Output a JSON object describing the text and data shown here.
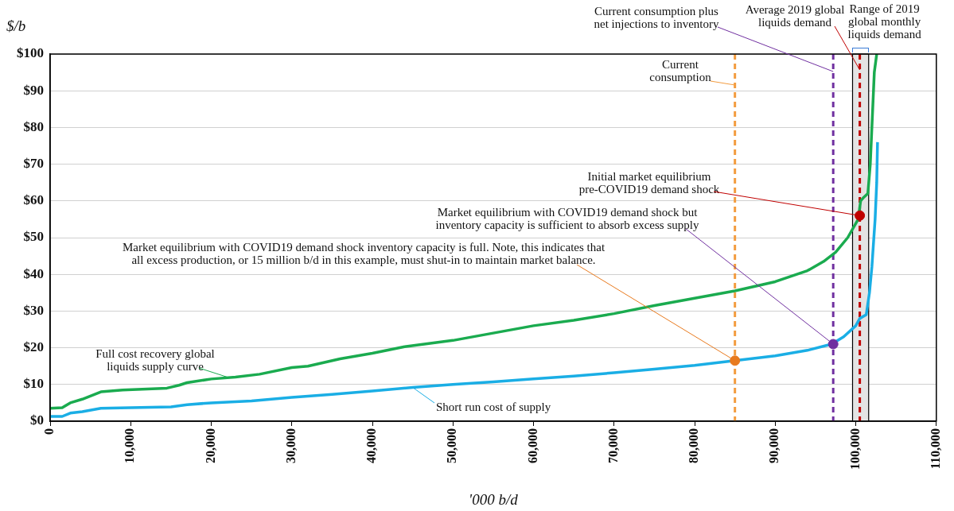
{
  "chart_data": {
    "type": "line",
    "xlabel": "'000 b/d",
    "ylabel": "$/b",
    "xlim": [
      0,
      110000
    ],
    "ylim": [
      0,
      100
    ],
    "xticks": [
      0,
      {
        "value": 10000,
        "label": "10,000"
      },
      {
        "value": 20000,
        "label": "20,000"
      },
      {
        "value": 30000,
        "label": "30,000"
      },
      {
        "value": 40000,
        "label": "40,000"
      },
      {
        "value": 50000,
        "label": "50,000"
      },
      {
        "value": 60000,
        "label": "60,000"
      },
      {
        "value": 70000,
        "label": "70,000"
      },
      {
        "value": 80000,
        "label": "80,000"
      },
      {
        "value": 90000,
        "label": "90,000"
      },
      {
        "value": 100000,
        "label": "100,000"
      },
      {
        "value": 110000,
        "label": "110,000"
      }
    ],
    "yticks": [
      {
        "value": 0,
        "label": "$0"
      },
      {
        "value": 10,
        "label": "$10"
      },
      {
        "value": 20,
        "label": "$20"
      },
      {
        "value": 30,
        "label": "$30"
      },
      {
        "value": 40,
        "label": "$40"
      },
      {
        "value": 50,
        "label": "$50"
      },
      {
        "value": 60,
        "label": "$60"
      },
      {
        "value": 70,
        "label": "$70"
      },
      {
        "value": 80,
        "label": "$80"
      },
      {
        "value": 90,
        "label": "$90"
      },
      {
        "value": 100,
        "label": "$100"
      }
    ],
    "grid": "y",
    "legend": false,
    "marker": "none",
    "line_style": "solid",
    "series": [
      {
        "name": "Full cost recovery global\nliquids supply curve",
        "color": "#1aab4f",
        "x": [
          0,
          1500,
          2500,
          4000,
          6300,
          9000,
          14500,
          16000,
          17000,
          20000,
          23000,
          26000,
          30000,
          32000,
          36000,
          40000,
          44000,
          50000,
          55000,
          60000,
          65000,
          70000,
          75000,
          80000,
          85000,
          90000,
          94000,
          96000,
          97500,
          99000,
          100300,
          100600,
          101000,
          101500,
          101800,
          102000,
          102300,
          102600
        ],
        "values": [
          3.5,
          3.7,
          5,
          6,
          8,
          8.5,
          9,
          9.8,
          10.5,
          11.5,
          12,
          12.8,
          14.6,
          15,
          17,
          18.5,
          20.3,
          22,
          24,
          26,
          27.5,
          29.3,
          31.5,
          33.5,
          35.5,
          38,
          41,
          43.5,
          46,
          50,
          55,
          60,
          61,
          62,
          70,
          80,
          95,
          100
        ]
      },
      {
        "name": "Short run cost of supply",
        "color": "#1aaee5",
        "x": [
          0,
          1500,
          2500,
          4000,
          6300,
          10000,
          15000,
          17000,
          20000,
          25000,
          30000,
          35000,
          40000,
          45000,
          50000,
          55000,
          60000,
          65000,
          70000,
          75000,
          80000,
          90000,
          94000,
          97000,
          98500,
          100000,
          100500,
          101300,
          101700,
          102000,
          102400,
          102600,
          102700
        ],
        "values": [
          1.3,
          1.3,
          2.2,
          2.6,
          3.5,
          3.7,
          3.9,
          4.5,
          5,
          5.5,
          6.5,
          7.3,
          8.2,
          9.2,
          10,
          10.7,
          11.5,
          12.3,
          13.2,
          14.2,
          15.2,
          17.8,
          19.3,
          21,
          23,
          26,
          28,
          29,
          35,
          42,
          55,
          65,
          76
        ]
      },
      {
        "type": "scatter",
        "marker": "circle",
        "x": [
          85000,
          97200,
          100500
        ],
        "values": [
          16.5,
          21,
          56
        ],
        "colors": [
          "#e87a1e",
          "#7030a0",
          "#c00000"
        ]
      }
    ],
    "ref_lines": [
      {
        "axis": "x",
        "value": 85000,
        "label": "Current\nconsumption",
        "color": "#f39c3f",
        "line_style": "dashed"
      },
      {
        "axis": "x",
        "value": 97200,
        "label": "Current consumption plus\nnet injections to inventory",
        "color": "#7030a0",
        "line_style": "dashed"
      },
      {
        "axis": "x",
        "value": 100500,
        "label": "Average 2019 global\nliquids demand",
        "color": "#c00000",
        "line_style": "dashed"
      }
    ],
    "bands": [
      {
        "axis": "x",
        "from": 99600,
        "to": 101600,
        "label": "Range of 2019\nglobal monthly\nliquids demand",
        "color": "#e4e4e4"
      }
    ],
    "annotations": [
      {
        "text": "Initial market equilibrium\npre-COVID19 demand shock",
        "x": 100500,
        "y": 56
      },
      {
        "text": "Market equilibrium with COVID19 demand shock but\ninventory capacity is sufficient to absorb excess supply",
        "x": 97200,
        "y": 21
      },
      {
        "text": "Market equilibrium with COVID19 demand shock inventory capacity is full. Note, this indicates that\nall excess production, or 15 million b/d in this example, must shut-in to maintain market balance.",
        "x": 85000,
        "y": 16.5
      }
    ]
  }
}
